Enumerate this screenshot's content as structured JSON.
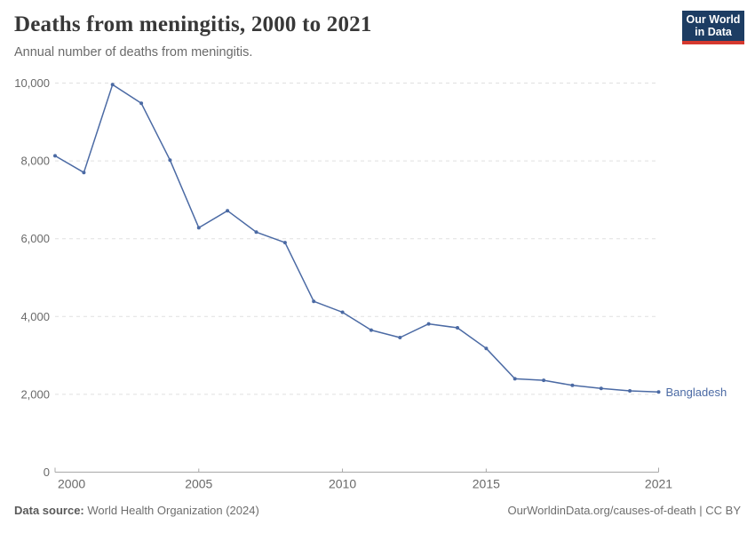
{
  "header": {
    "title": "Deaths from meningitis, 2000 to 2021",
    "subtitle": "Annual number of deaths from meningitis."
  },
  "logo": {
    "line1": "Our World",
    "line2": "in Data"
  },
  "chart_data": {
    "type": "line",
    "title": "Deaths from meningitis, 2000 to 2021",
    "xlabel": "",
    "ylabel": "",
    "xlim": [
      2000,
      2021
    ],
    "ylim": [
      0,
      10000
    ],
    "xticks": [
      2000,
      2005,
      2010,
      2015,
      2021
    ],
    "yticks": [
      0,
      2000,
      4000,
      6000,
      8000,
      10000
    ],
    "grid": "horizontal-dashed",
    "legend": "end-of-line-label",
    "x": [
      2000,
      2001,
      2002,
      2003,
      2004,
      2005,
      2006,
      2007,
      2008,
      2009,
      2010,
      2011,
      2012,
      2013,
      2014,
      2015,
      2016,
      2017,
      2018,
      2019,
      2020,
      2021
    ],
    "series": [
      {
        "name": "Bangladesh",
        "values": [
          8130,
          7700,
          9960,
          9480,
          8020,
          6280,
          6720,
          6170,
          5900,
          4390,
          4110,
          3650,
          3460,
          3810,
          3710,
          3180,
          2400,
          2360,
          2230,
          2150,
          2090,
          2060
        ]
      }
    ]
  },
  "colors": {
    "line": "#4b6aa4",
    "grid": "#e0e0e0",
    "axis": "#a8a8a8",
    "tick_label": "#696969",
    "end_label": "#4b6aa4",
    "logo_bg": "#1d3d63",
    "logo_accent": "#d5392f"
  },
  "footer": {
    "source_label": "Data source:",
    "source_text": "World Health Organization (2024)",
    "rights": "OurWorldinData.org/causes-of-death | CC BY"
  }
}
